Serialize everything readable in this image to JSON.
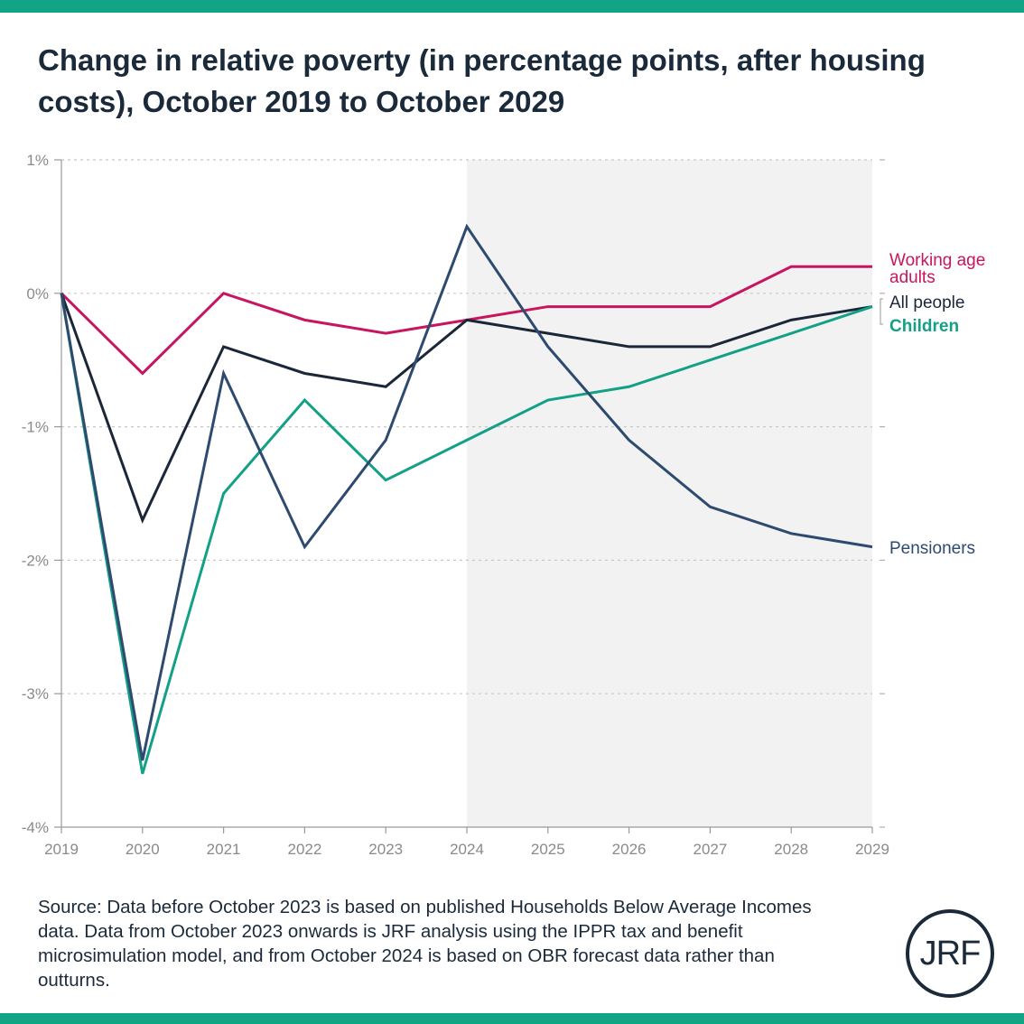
{
  "title": "Change in relative poverty (in percentage points, after housing costs), October 2019 to October 2029",
  "source": "Source: Data before October 2023 is based on published Households Below Average Incomes data. Data from October 2023 onwards is JRF analysis using the IPPR tax and benefit microsimulation model, and from October 2024 is based on OBR forecast data rather than outturns.",
  "logo": "JRF",
  "colors": {
    "accent": "#12a585",
    "working_age": "#c8155f",
    "all_people": "#1b2638",
    "children": "#13a086",
    "pensioners": "#2e4a6e",
    "forecast_shade": "#f2f2f2"
  },
  "chart_data": {
    "type": "line",
    "title": "Change in relative poverty (in percentage points, after housing costs), October 2019 to October 2029",
    "xlabel": "",
    "ylabel": "",
    "x": [
      2019,
      2020,
      2021,
      2022,
      2023,
      2024,
      2025,
      2026,
      2027,
      2028,
      2029
    ],
    "x_tick_labels": [
      "2019",
      "2020",
      "2021",
      "2022",
      "2023",
      "2024",
      "2025",
      "2026",
      "2027",
      "2028",
      "2029"
    ],
    "y_tick_labels": [
      "1%",
      "0%",
      "-1%",
      "-2%",
      "-3%",
      "-4%"
    ],
    "y_ticks": [
      1,
      0,
      -1,
      -2,
      -3,
      -4
    ],
    "ylim": [
      -4,
      1
    ],
    "grid": true,
    "legend": "direct labels at right end of lines",
    "shaded_region": {
      "from": 2024,
      "to": 2029
    },
    "series": [
      {
        "name": "Working age adults",
        "label_lines": [
          "Working age",
          "adults"
        ],
        "color_key": "working_age",
        "values": [
          0,
          -0.6,
          0,
          -0.2,
          -0.3,
          -0.2,
          -0.1,
          -0.1,
          -0.1,
          0.2,
          0.2
        ]
      },
      {
        "name": "All people",
        "label_lines": [
          "All people"
        ],
        "color_key": "all_people",
        "values": [
          0,
          -1.7,
          -0.4,
          -0.6,
          -0.7,
          -0.2,
          -0.3,
          -0.4,
          -0.4,
          -0.2,
          -0.1
        ]
      },
      {
        "name": "Children",
        "label_lines": [
          "Children"
        ],
        "color_key": "children",
        "values": [
          0,
          -3.6,
          -1.5,
          -0.8,
          -1.4,
          -1.1,
          -0.8,
          -0.7,
          -0.5,
          -0.3,
          -0.1
        ]
      },
      {
        "name": "Pensioners",
        "label_lines": [
          "Pensioners"
        ],
        "color_key": "pensioners",
        "values": [
          0,
          -3.5,
          -0.6,
          -1.9,
          -1.1,
          0.5,
          -0.4,
          -1.1,
          -1.6,
          -1.8,
          -1.9
        ]
      }
    ]
  }
}
